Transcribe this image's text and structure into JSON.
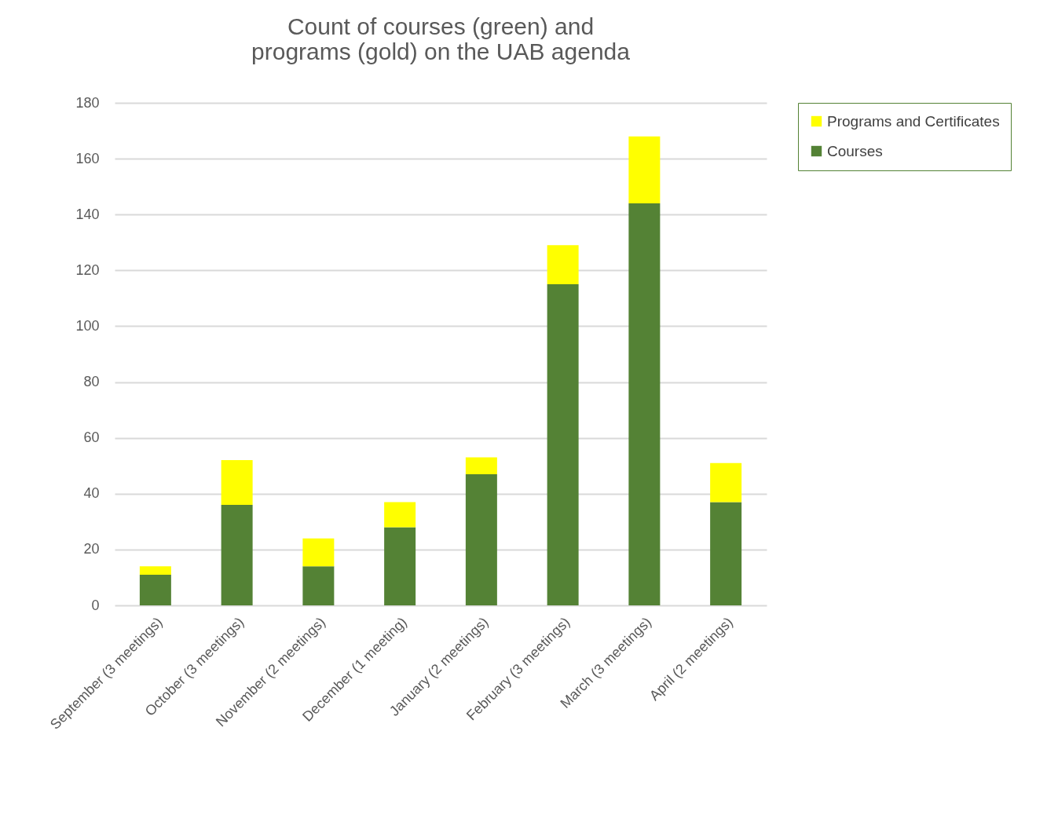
{
  "chart_data": {
    "type": "bar",
    "title": "Count of courses (green) and programs (gold) on the UAB agenda",
    "categories": [
      "September (3 meetings)",
      "October (3 meetings)",
      "November (2 meetings)",
      "December (1 meeting)",
      "January (2 meetings)",
      "February (3 meetings)",
      "March (3 meetings)",
      "April (2 meetings)"
    ],
    "series": [
      {
        "name": "Courses",
        "color": "#548235",
        "values": [
          11,
          36,
          14,
          28,
          47,
          115,
          144,
          37
        ]
      },
      {
        "name": "Programs and Certificates",
        "color": "#ffff00",
        "values": [
          3,
          16,
          10,
          9,
          6,
          14,
          24,
          14
        ]
      }
    ],
    "stacked": true,
    "ylim": [
      0,
      180
    ],
    "yticks": [
      0,
      20,
      40,
      60,
      80,
      100,
      120,
      140,
      160,
      180
    ],
    "grid": "y",
    "legend": "right"
  }
}
